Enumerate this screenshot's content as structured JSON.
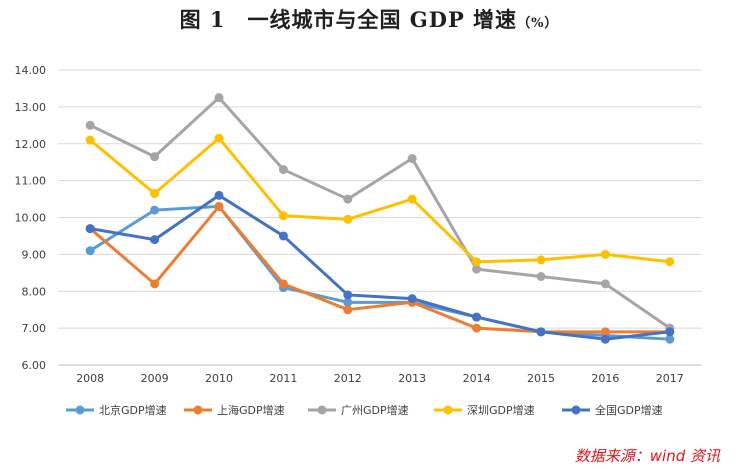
{
  "chart_data": {
    "type": "line",
    "title": "图 1　一线城市与全国 GDP 增速",
    "title_unit": "（%）",
    "categories": [
      "2008",
      "2009",
      "2010",
      "2011",
      "2012",
      "2013",
      "2014",
      "2015",
      "2016",
      "2017"
    ],
    "ylim": [
      6,
      14
    ],
    "yticks": [
      "6.00",
      "7.00",
      "8.00",
      "9.00",
      "10.00",
      "11.00",
      "12.00",
      "13.00",
      "14.00"
    ],
    "grid": true,
    "legend_position": "bottom",
    "series": [
      {
        "name": "北京GDP增速",
        "color": "#5b9bd5",
        "values": [
          9.1,
          10.2,
          10.3,
          8.1,
          7.7,
          7.7,
          7.3,
          6.9,
          6.8,
          6.7
        ]
      },
      {
        "name": "上海GDP增速",
        "color": "#ed7d31",
        "values": [
          9.7,
          8.2,
          10.3,
          8.2,
          7.5,
          7.7,
          7.0,
          6.9,
          6.9,
          6.9
        ]
      },
      {
        "name": "广州GDP增速",
        "color": "#a5a5a5",
        "values": [
          12.5,
          11.65,
          13.25,
          11.3,
          10.5,
          11.6,
          8.6,
          8.4,
          8.2,
          7.0
        ]
      },
      {
        "name": "深圳GDP增速",
        "color": "#ffc000",
        "values": [
          12.1,
          10.65,
          12.15,
          10.05,
          9.95,
          10.5,
          8.8,
          8.85,
          9.0,
          8.8
        ]
      },
      {
        "name": "全国GDP增速",
        "color": "#4472c4",
        "values": [
          9.7,
          9.4,
          10.6,
          9.5,
          7.9,
          7.8,
          7.3,
          6.9,
          6.7,
          6.9
        ]
      }
    ]
  },
  "source": "数据来源：wind 资讯"
}
